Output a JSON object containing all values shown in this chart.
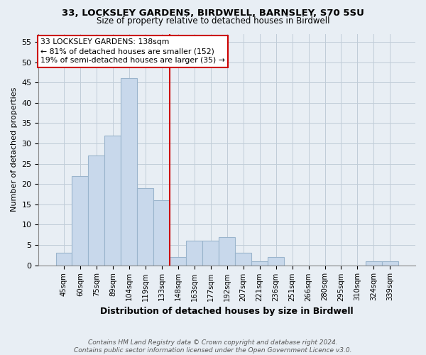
{
  "title1": "33, LOCKSLEY GARDENS, BIRDWELL, BARNSLEY, S70 5SU",
  "title2": "Size of property relative to detached houses in Birdwell",
  "xlabel": "Distribution of detached houses by size in Birdwell",
  "ylabel": "Number of detached properties",
  "categories": [
    "45sqm",
    "60sqm",
    "75sqm",
    "89sqm",
    "104sqm",
    "119sqm",
    "133sqm",
    "148sqm",
    "163sqm",
    "177sqm",
    "192sqm",
    "207sqm",
    "221sqm",
    "236sqm",
    "251sqm",
    "266sqm",
    "280sqm",
    "295sqm",
    "310sqm",
    "324sqm",
    "339sqm"
  ],
  "values": [
    3,
    22,
    27,
    32,
    46,
    19,
    16,
    2,
    6,
    6,
    7,
    3,
    1,
    2,
    0,
    0,
    0,
    0,
    0,
    1,
    1
  ],
  "bar_color": "#c8d8eb",
  "bar_edge_color": "#9ab4cc",
  "vline_color": "#cc0000",
  "annotation_text": "33 LOCKSLEY GARDENS: 138sqm\n← 81% of detached houses are smaller (152)\n19% of semi-detached houses are larger (35) →",
  "annotation_box_color": "#ffffff",
  "annotation_border_color": "#cc0000",
  "ylim": [
    0,
    57
  ],
  "yticks": [
    0,
    5,
    10,
    15,
    20,
    25,
    30,
    35,
    40,
    45,
    50,
    55
  ],
  "footer": "Contains HM Land Registry data © Crown copyright and database right 2024.\nContains public sector information licensed under the Open Government Licence v3.0.",
  "bg_color": "#e8eef4",
  "plot_bg_color": "#e8eef4",
  "grid_color": "#c0ccd8"
}
